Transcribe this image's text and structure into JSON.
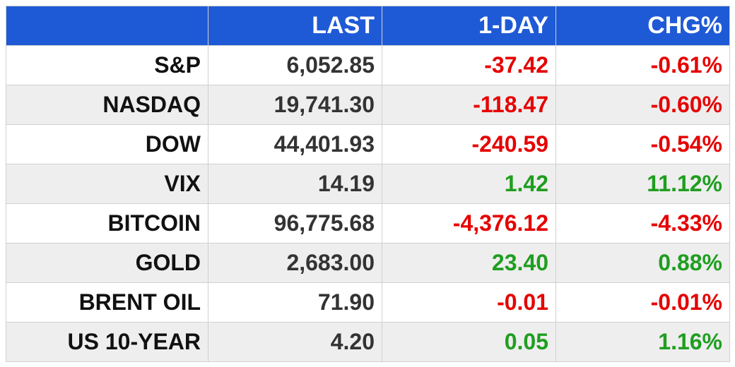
{
  "table": {
    "headers": [
      "",
      "LAST",
      "1-DAY",
      "CHG%"
    ],
    "rows": [
      {
        "name": "S&P",
        "last": "6,052.85",
        "day": "-37.42",
        "chg": "-0.61%",
        "dir": "neg"
      },
      {
        "name": "NASDAQ",
        "last": "19,741.30",
        "day": "-118.47",
        "chg": "-0.60%",
        "dir": "neg"
      },
      {
        "name": "DOW",
        "last": "44,401.93",
        "day": "-240.59",
        "chg": "-0.54%",
        "dir": "neg"
      },
      {
        "name": "VIX",
        "last": "14.19",
        "day": "1.42",
        "chg": "11.12%",
        "dir": "pos"
      },
      {
        "name": "BITCOIN",
        "last": "96,775.68",
        "day": "-4,376.12",
        "chg": "-4.33%",
        "dir": "neg"
      },
      {
        "name": "GOLD",
        "last": "2,683.00",
        "day": "23.40",
        "chg": "0.88%",
        "dir": "pos"
      },
      {
        "name": "BRENT OIL",
        "last": "71.90",
        "day": "-0.01",
        "chg": "-0.01%",
        "dir": "neg"
      },
      {
        "name": "US 10-YEAR",
        "last": "4.20",
        "day": "0.05",
        "chg": "1.16%",
        "dir": "pos"
      }
    ]
  },
  "colors": {
    "header_bg": "#1f5ad6",
    "negative": "#e60000",
    "positive": "#1f9e1f",
    "stripe": "#eeeeee"
  }
}
